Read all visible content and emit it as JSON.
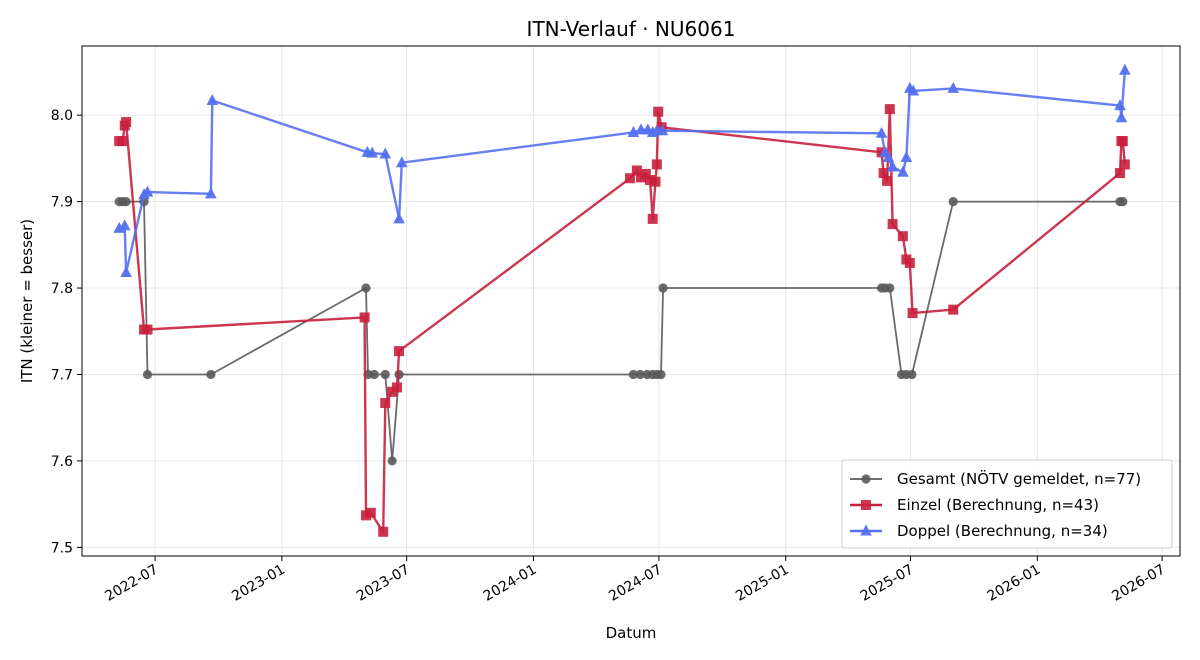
{
  "chart_data": {
    "type": "line",
    "title": "ITN-Verlauf · NU6061",
    "xlabel": "Datum",
    "ylabel": "ITN  (kleiner = besser)",
    "xlim": [
      "2022-03-17",
      "2026-07-27"
    ],
    "ylim": [
      7.49,
      8.08
    ],
    "x_ticks": [
      "2022-07-01",
      "2023-01-01",
      "2023-07-01",
      "2024-01-01",
      "2024-07-01",
      "2025-01-01",
      "2025-07-01",
      "2026-01-01",
      "2026-07-01"
    ],
    "x_tick_labels": [
      "2022-07",
      "2023-01",
      "2023-07",
      "2024-01",
      "2024-07",
      "2025-01",
      "2025-07",
      "2026-01",
      "2026-07"
    ],
    "y_ticks": [
      7.5,
      7.6,
      7.7,
      7.8,
      7.9,
      8.0
    ],
    "y_tick_labels": [
      "7.5",
      "7.6",
      "7.7",
      "7.8",
      "7.9",
      "8.0"
    ],
    "grid": true,
    "legend_position": "bottom-right",
    "series": [
      {
        "name": "Gesamt (NÖTV gemeldet, n=77)",
        "color": "#5a5a5a",
        "marker": "circle",
        "points": [
          [
            "2022-05-10",
            7.9
          ],
          [
            "2022-05-15",
            7.9
          ],
          [
            "2022-05-20",
            7.9
          ],
          [
            "2022-06-15",
            7.9
          ],
          [
            "2022-06-20",
            7.7
          ],
          [
            "2022-09-20",
            7.7
          ],
          [
            "2023-05-03",
            7.8
          ],
          [
            "2023-05-06",
            7.7
          ],
          [
            "2023-05-15",
            7.7
          ],
          [
            "2023-05-31",
            7.7
          ],
          [
            "2023-06-10",
            7.6
          ],
          [
            "2023-06-20",
            7.7
          ],
          [
            "2024-05-25",
            7.7
          ],
          [
            "2024-06-04",
            7.7
          ],
          [
            "2024-06-14",
            7.7
          ],
          [
            "2024-06-22",
            7.7
          ],
          [
            "2024-06-28",
            7.7
          ],
          [
            "2024-07-04",
            7.7
          ],
          [
            "2024-07-07",
            7.8
          ],
          [
            "2025-05-20",
            7.8
          ],
          [
            "2025-05-25",
            7.8
          ],
          [
            "2025-06-01",
            7.8
          ],
          [
            "2025-06-18",
            7.7
          ],
          [
            "2025-06-25",
            7.7
          ],
          [
            "2025-07-03",
            7.7
          ],
          [
            "2025-09-01",
            7.9
          ],
          [
            "2026-05-01",
            7.9
          ],
          [
            "2026-05-05",
            7.9
          ]
        ]
      },
      {
        "name": "Einzel (Berechnung, n=43)",
        "color": "#c8203d",
        "marker": "square",
        "points": [
          [
            "2022-05-10",
            7.97
          ],
          [
            "2022-05-15",
            7.97
          ],
          [
            "2022-05-18",
            7.988
          ],
          [
            "2022-05-20",
            7.992
          ],
          [
            "2022-06-15",
            7.752
          ],
          [
            "2022-06-20",
            7.752
          ],
          [
            "2023-05-01",
            7.766
          ],
          [
            "2023-05-03",
            7.537
          ],
          [
            "2023-05-10",
            7.54
          ],
          [
            "2023-05-28",
            7.518
          ],
          [
            "2023-05-31",
            7.667
          ],
          [
            "2023-06-10",
            7.68
          ],
          [
            "2023-06-17",
            7.685
          ],
          [
            "2023-06-20",
            7.727
          ],
          [
            "2024-05-20",
            7.927
          ],
          [
            "2024-05-30",
            7.936
          ],
          [
            "2024-06-05",
            7.928
          ],
          [
            "2024-06-12",
            7.932
          ],
          [
            "2024-06-18",
            7.925
          ],
          [
            "2024-06-22",
            7.88
          ],
          [
            "2024-06-26",
            7.923
          ],
          [
            "2024-06-28",
            7.943
          ],
          [
            "2024-06-30",
            8.004
          ],
          [
            "2024-07-05",
            7.986
          ],
          [
            "2025-05-20",
            7.957
          ],
          [
            "2025-05-23",
            7.933
          ],
          [
            "2025-05-28",
            7.924
          ],
          [
            "2025-06-01",
            8.007
          ],
          [
            "2025-06-05",
            7.874
          ],
          [
            "2025-06-20",
            7.86
          ],
          [
            "2025-06-25",
            7.833
          ],
          [
            "2025-06-30",
            7.829
          ],
          [
            "2025-07-04",
            7.771
          ],
          [
            "2025-09-01",
            7.775
          ],
          [
            "2026-05-01",
            7.933
          ],
          [
            "2026-05-03",
            7.97
          ],
          [
            "2026-05-05",
            7.97
          ],
          [
            "2026-05-08",
            7.943
          ]
        ]
      },
      {
        "name": "Doppel (Berechnung, n=34)",
        "color": "#5470f0",
        "marker": "triangle",
        "points": [
          [
            "2022-05-10",
            7.869
          ],
          [
            "2022-05-18",
            7.872
          ],
          [
            "2022-05-20",
            7.818
          ],
          [
            "2022-06-15",
            7.908
          ],
          [
            "2022-06-20",
            7.911
          ],
          [
            "2022-09-20",
            7.909
          ],
          [
            "2022-09-22",
            8.017
          ],
          [
            "2023-05-05",
            7.957
          ],
          [
            "2023-05-12",
            7.956
          ],
          [
            "2023-05-31",
            7.955
          ],
          [
            "2023-06-20",
            7.88
          ],
          [
            "2023-06-24",
            7.945
          ],
          [
            "2024-05-25",
            7.98
          ],
          [
            "2024-06-05",
            7.983
          ],
          [
            "2024-06-15",
            7.983
          ],
          [
            "2024-06-22",
            7.98
          ],
          [
            "2024-06-28",
            7.982
          ],
          [
            "2024-07-06",
            7.982
          ],
          [
            "2025-05-20",
            7.979
          ],
          [
            "2025-05-25",
            7.957
          ],
          [
            "2025-05-30",
            7.951
          ],
          [
            "2025-06-05",
            7.94
          ],
          [
            "2025-06-20",
            7.934
          ],
          [
            "2025-06-25",
            7.951
          ],
          [
            "2025-06-30",
            8.031
          ],
          [
            "2025-07-05",
            8.028
          ],
          [
            "2025-09-01",
            8.031
          ],
          [
            "2026-05-01",
            8.011
          ],
          [
            "2026-05-03",
            7.997
          ],
          [
            "2026-05-08",
            8.052
          ]
        ]
      }
    ]
  }
}
